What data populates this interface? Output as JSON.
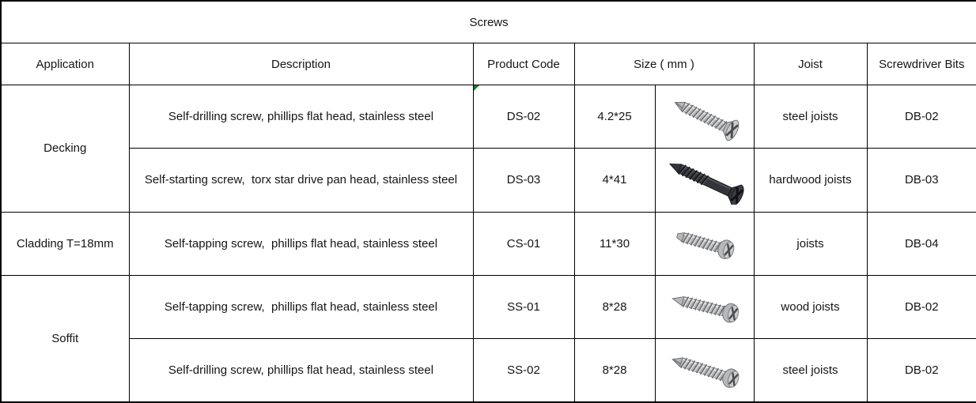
{
  "table": {
    "title": "Screws",
    "headers": {
      "application": "Application",
      "description": "Description",
      "product_code": "Product Code",
      "size": "Size ( mm )",
      "joist": "Joist",
      "screwdriver_bits": "Screwdriver Bits"
    },
    "applications": [
      {
        "label": "Decking",
        "rowspan": 2
      },
      {
        "label": "Cladding T=18mm",
        "rowspan": 1
      },
      {
        "label": "Soffit",
        "rowspan": 2
      }
    ],
    "rows": [
      {
        "description": "Self-drilling screw, phillips flat head, stainless steel",
        "product_code": "DS-02",
        "size": "4.2*25",
        "joist": "steel joists",
        "screwdriver_bit": "DB-02",
        "error_marker": true,
        "screw_image": "self-drilling-flat-head-stainless-screw-photo",
        "screw": {
          "finish": "silver",
          "head": "flat",
          "tip": "drill",
          "angle": 26,
          "length": 88,
          "partial_thread": false
        }
      },
      {
        "description": "Self-starting screw,  torx star drive pan head, stainless steel",
        "product_code": "DS-03",
        "size": "4*41",
        "joist": "hardwood joists",
        "screwdriver_bit": "DB-03",
        "error_marker": false,
        "screw_image": "self-starting-torx-drive-black-screw-photo",
        "screw": {
          "finish": "black",
          "head": "flat",
          "tip": "sharp",
          "angle": 25,
          "length": 102,
          "partial_thread": true
        }
      },
      {
        "description": "Self-tapping screw,  phillips flat head, stainless steel",
        "product_code": "CS-01",
        "size": "11*30",
        "joist": "joists",
        "screwdriver_bit": "DB-04",
        "error_marker": false,
        "screw_image": "self-tapping-pan-head-stainless-screw-photo",
        "screw": {
          "finish": "silver",
          "head": "pan",
          "tip": "blunt",
          "angle": 16,
          "length": 76,
          "partial_thread": false
        }
      },
      {
        "description": "Self-tapping screw,  phillips flat head, stainless steel",
        "product_code": "SS-01",
        "size": "8*28",
        "joist": "wood joists",
        "screwdriver_bit": "DB-02",
        "error_marker": false,
        "screw_image": "self-tapping-pan-head-stainless-screw-photo",
        "screw": {
          "finish": "silver",
          "head": "pan",
          "tip": "sharp",
          "angle": 14,
          "length": 88,
          "partial_thread": false
        }
      },
      {
        "description": "Self-drilling screw, phillips flat head, stainless steel",
        "product_code": "SS-02",
        "size": "8*28",
        "joist": "steel joists",
        "screwdriver_bit": "DB-02",
        "error_marker": false,
        "screw_image": "self-drilling-pan-head-stainless-screw-photo",
        "screw": {
          "finish": "silver",
          "head": "pan",
          "tip": "drill",
          "angle": 18,
          "length": 90,
          "partial_thread": false
        }
      }
    ],
    "colors": {
      "border": "#000000",
      "background": "#ffffff",
      "text": "#151515",
      "error_marker": "#1e7b1e",
      "screw_silver": "#b7b8ba",
      "screw_black": "#33353a"
    }
  }
}
